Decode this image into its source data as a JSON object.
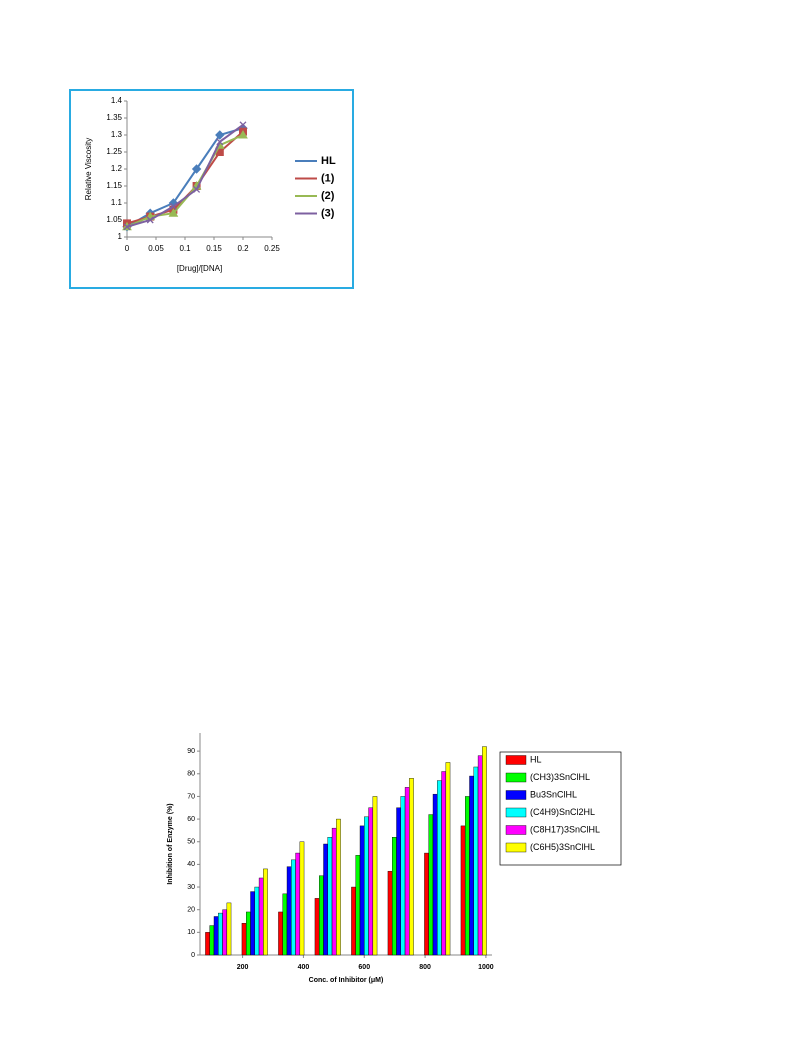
{
  "chart_data": [
    {
      "type": "line",
      "y_label": "Relative Viscosity",
      "x_label": "[Drug]/[DNA]",
      "x": [
        0,
        0.04,
        0.08,
        0.12,
        0.16,
        0.2
      ],
      "series": [
        {
          "name": "HL",
          "color": "#4a7ebb",
          "marker": "diamond",
          "values": [
            1.03,
            1.07,
            1.1,
            1.2,
            1.3,
            1.32
          ]
        },
        {
          "name": "(1)",
          "color": "#be4b48",
          "marker": "square",
          "values": [
            1.04,
            1.06,
            1.08,
            1.15,
            1.25,
            1.31
          ]
        },
        {
          "name": "(2)",
          "color": "#98b954",
          "marker": "triangle",
          "values": [
            1.03,
            1.06,
            1.07,
            1.15,
            1.27,
            1.3
          ]
        },
        {
          "name": "(3)",
          "color": "#7d60a0",
          "marker": "cross",
          "values": [
            1.03,
            1.05,
            1.09,
            1.14,
            1.28,
            1.33
          ]
        }
      ],
      "xlim": [
        0,
        0.25
      ],
      "xticks": [
        0,
        0.05,
        0.1,
        0.15,
        0.2,
        0.25
      ],
      "ylim": [
        1,
        1.4
      ],
      "yticks": [
        1,
        1.05,
        1.1,
        1.15,
        1.2,
        1.25,
        1.3,
        1.35,
        1.4
      ],
      "legend": "right"
    },
    {
      "type": "bar",
      "y_label": "Inhibition of Enzyme (%)",
      "x_label": "Conc. of Inhibitor (μM)",
      "x": [
        120,
        240,
        360,
        480,
        600,
        720,
        840,
        960
      ],
      "series": [
        {
          "name": "HL",
          "color": "#ff0000",
          "values": [
            10,
            14,
            19,
            25,
            30,
            37,
            45,
            57
          ]
        },
        {
          "name": "(CH3)3SnClHL",
          "color": "#00ff00",
          "values": [
            13,
            19,
            27,
            35,
            44,
            52,
            62,
            70
          ]
        },
        {
          "name": "Bu3SnClHL",
          "color": "#0000ff",
          "values": [
            17,
            28,
            39,
            49,
            57,
            65,
            71,
            79
          ]
        },
        {
          "name": "(C4H9)SnCl2HL",
          "color": "#00ffff",
          "values": [
            18.5,
            30,
            42,
            52,
            61,
            70,
            77,
            83
          ]
        },
        {
          "name": "(C8H17)3SnClHL",
          "color": "#ff00ff",
          "values": [
            20,
            34,
            45,
            56,
            65,
            74,
            81,
            88
          ]
        },
        {
          "name": "(C6H5)3SnClHL",
          "color": "#ffff00",
          "values": [
            23,
            38,
            50,
            60,
            70,
            78,
            85,
            92
          ]
        }
      ],
      "xlim": [
        60,
        1020
      ],
      "xticks": [
        200,
        400,
        600,
        800,
        1000
      ],
      "ylim": [
        0,
        98
      ],
      "yticks": [
        0,
        10,
        20,
        30,
        40,
        50,
        60,
        70,
        80,
        90
      ],
      "legend": "right"
    }
  ]
}
